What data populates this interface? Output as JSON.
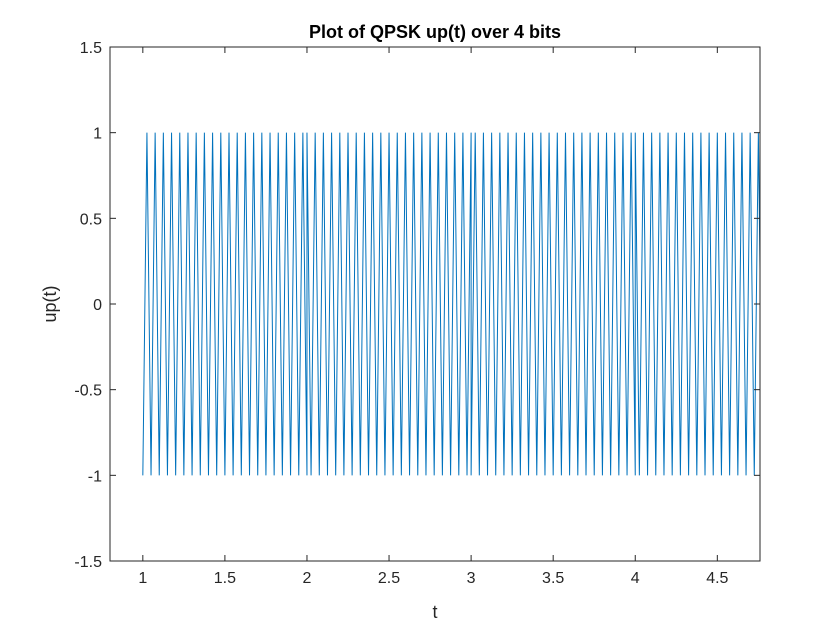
{
  "chart_data": {
    "type": "line",
    "title": "Plot of QPSK up(t) over 4 bits",
    "xlabel": "t",
    "ylabel": "up(t)",
    "xlim": [
      0.8,
      4.76
    ],
    "ylim": [
      -1.5,
      1.5
    ],
    "xticks": [
      1,
      1.5,
      2,
      2.5,
      3,
      3.5,
      4,
      4.5
    ],
    "xtick_labels": [
      "1",
      "1.5",
      "2",
      "2.5",
      "3",
      "3.5",
      "4",
      "4.5"
    ],
    "yticks": [
      -1.5,
      -1,
      -0.5,
      0,
      0.5,
      1,
      1.5
    ],
    "ytick_labels": [
      "-1.5",
      "-1",
      "-0.5",
      "0",
      "0.5",
      "1",
      "1.5"
    ],
    "grid": false,
    "legend": "none",
    "series": [
      {
        "signal": "triangle",
        "t_start": 1,
        "t_end": 4.76,
        "cycles_per_bit": 20,
        "amplitude": 1,
        "start_value": -1,
        "phase_flip_times": [
          2,
          3,
          4
        ],
        "color": "#0072bd"
      }
    ]
  }
}
